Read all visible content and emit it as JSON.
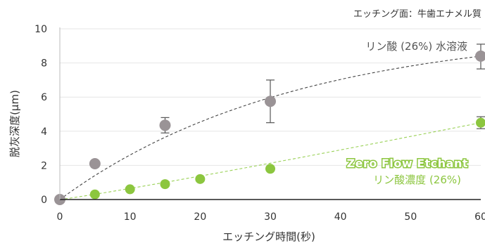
{
  "chart_data": {
    "type": "scatter",
    "title": "",
    "note": "エッチング面：牛歯エナメル質",
    "xlabel": "エッチング時間(秒)",
    "ylabel": "脱灰深度(μm)",
    "xlim": [
      0,
      60
    ],
    "ylim": [
      0,
      10
    ],
    "xticks": [
      0,
      10,
      20,
      30,
      40,
      50,
      60
    ],
    "yticks": [
      0,
      2,
      4,
      6,
      8,
      10
    ],
    "grid": true,
    "series": [
      {
        "name": "リン酸 (26%) 水溶液",
        "color": "#9a9396",
        "x": [
          0,
          5,
          15,
          30,
          60
        ],
        "y": [
          0,
          2.1,
          4.35,
          5.75,
          8.4
        ],
        "err_low": [
          null,
          null,
          3.9,
          4.5,
          7.65
        ],
        "err_high": [
          null,
          null,
          4.8,
          7.0,
          9.1
        ],
        "trend": "dashed"
      },
      {
        "name_lines": [
          "Zero Flow Etchant",
          "リン酸濃度 (26%)"
        ],
        "color": "#8cc63f",
        "x": [
          5,
          10,
          15,
          20,
          30,
          60
        ],
        "y": [
          0.3,
          0.6,
          0.9,
          1.2,
          1.8,
          4.5
        ],
        "err_low": [
          null,
          null,
          null,
          null,
          null,
          4.15
        ],
        "err_high": [
          null,
          null,
          null,
          null,
          null,
          4.85
        ],
        "trend": "dashed"
      }
    ]
  }
}
